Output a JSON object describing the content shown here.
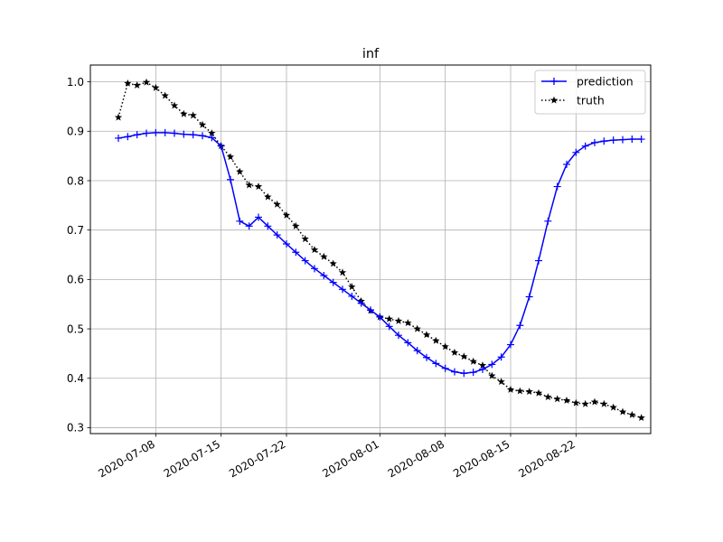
{
  "chart_data": {
    "type": "line",
    "title": "inf",
    "xlabel": "",
    "ylabel": "",
    "x_ticks": [
      "2020-07-08",
      "2020-07-15",
      "2020-07-22",
      "2020-08-01",
      "2020-08-08",
      "2020-08-15",
      "2020-08-22"
    ],
    "y_ticks": [
      "0.3",
      "0.4",
      "0.5",
      "0.6",
      "0.7",
      "0.8",
      "0.9",
      "1.0"
    ],
    "xlim": [
      "2020-07-01",
      "2020-08-30"
    ],
    "ylim": [
      0.288,
      1.034
    ],
    "grid": true,
    "legend_position": "top-right",
    "x": [
      "2020-07-04",
      "2020-07-05",
      "2020-07-06",
      "2020-07-07",
      "2020-07-08",
      "2020-07-09",
      "2020-07-10",
      "2020-07-11",
      "2020-07-12",
      "2020-07-13",
      "2020-07-14",
      "2020-07-15",
      "2020-07-16",
      "2020-07-17",
      "2020-07-18",
      "2020-07-19",
      "2020-07-20",
      "2020-07-21",
      "2020-07-22",
      "2020-07-23",
      "2020-07-24",
      "2020-07-25",
      "2020-07-26",
      "2020-07-27",
      "2020-07-28",
      "2020-07-29",
      "2020-07-30",
      "2020-07-31",
      "2020-08-01",
      "2020-08-02",
      "2020-08-03",
      "2020-08-04",
      "2020-08-05",
      "2020-08-06",
      "2020-08-07",
      "2020-08-08",
      "2020-08-09",
      "2020-08-10",
      "2020-08-11",
      "2020-08-12",
      "2020-08-13",
      "2020-08-14",
      "2020-08-15",
      "2020-08-16",
      "2020-08-17",
      "2020-08-18",
      "2020-08-19",
      "2020-08-20",
      "2020-08-21",
      "2020-08-22",
      "2020-08-23",
      "2020-08-24",
      "2020-08-25",
      "2020-08-26",
      "2020-08-27",
      "2020-08-28",
      "2020-08-29"
    ],
    "series": [
      {
        "name": "prediction",
        "color": "#0000ff",
        "marker": "plus",
        "line_style": "solid",
        "values": [
          0.886,
          0.889,
          0.893,
          0.896,
          0.897,
          0.897,
          0.896,
          0.894,
          0.893,
          0.891,
          0.887,
          0.87,
          0.802,
          0.718,
          0.708,
          0.726,
          0.708,
          0.69,
          0.672,
          0.655,
          0.638,
          0.622,
          0.608,
          0.594,
          0.58,
          0.566,
          0.552,
          0.538,
          0.524,
          0.505,
          0.487,
          0.472,
          0.456,
          0.442,
          0.43,
          0.42,
          0.413,
          0.41,
          0.412,
          0.418,
          0.428,
          0.443,
          0.468,
          0.507,
          0.565,
          0.638,
          0.718,
          0.788,
          0.833,
          0.857,
          0.87,
          0.877,
          0.88,
          0.882,
          0.883,
          0.884,
          0.884
        ]
      },
      {
        "name": "truth",
        "color": "#000000",
        "marker": "star",
        "line_style": "dotted",
        "values": [
          0.928,
          0.997,
          0.993,
          0.999,
          0.988,
          0.972,
          0.952,
          0.935,
          0.932,
          0.913,
          0.896,
          0.87,
          0.848,
          0.818,
          0.791,
          0.788,
          0.767,
          0.752,
          0.73,
          0.708,
          0.682,
          0.66,
          0.646,
          0.632,
          0.614,
          0.585,
          0.556,
          0.537,
          0.524,
          0.52,
          0.516,
          0.512,
          0.5,
          0.488,
          0.476,
          0.464,
          0.452,
          0.444,
          0.434,
          0.426,
          0.405,
          0.393,
          0.377,
          0.374,
          0.373,
          0.37,
          0.362,
          0.358,
          0.355,
          0.35,
          0.348,
          0.352,
          0.348,
          0.341,
          0.332,
          0.326,
          0.32
        ]
      }
    ]
  }
}
